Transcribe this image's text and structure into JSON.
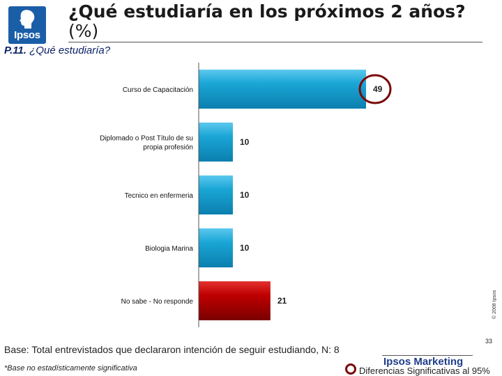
{
  "header": {
    "logo_text": "Ipsos",
    "title_bold": "¿Qué estudiaría en los próximos 2 años?",
    "title_suffix": "(%)",
    "question_code": "P.11.",
    "question_text": "¿Qué estudiaría?"
  },
  "chart_data": {
    "type": "bar",
    "orientation": "horizontal",
    "categories": [
      "Curso de Capacitación",
      "Diplomado o Post Título de su propia profesión",
      "Tecnico en enfermeria",
      "Biologia Marina",
      "No sabe - No responde"
    ],
    "values": [
      49,
      10,
      10,
      10,
      21
    ],
    "data_labels": [
      "49",
      "10",
      "10",
      "10",
      "21"
    ],
    "xlim": [
      0,
      100
    ],
    "bar_colors": [
      "#1aa6d6",
      "#1aa6d6",
      "#1aa6d6",
      "#1aa6d6",
      "#c00000"
    ],
    "highlighted_category": "Curso de Capacitación",
    "highlight_color": "#7a0a0a",
    "grid": false,
    "legend": "none"
  },
  "footer": {
    "base_text": "Base: Total entrevistados que declararon intención de seguir estudiando, N: 8",
    "footnote": "*Base no estadísticamente significativa",
    "brand": "Ipsos Marketing",
    "page_number": "33",
    "legend_text": "Diferencias Significativas al 95%",
    "copyright": "© 2008 Ipsos"
  }
}
